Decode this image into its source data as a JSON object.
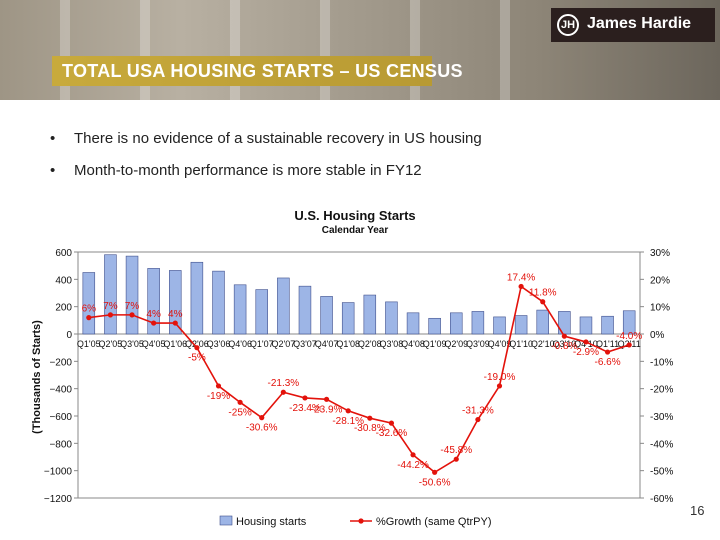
{
  "header": {
    "brand": "James Hardie",
    "logo_glyph": "JH",
    "title": "TOTAL USA HOUSING STARTS – US CENSUS"
  },
  "bullets": [
    "There is no evidence of a sustainable recovery in US housing",
    "Month-to-month performance is more stable in FY12"
  ],
  "page_number": "16",
  "colors": {
    "bar_fill": "#9db5e6",
    "bar_stroke": "#3f4f8c",
    "line": "#e3120b",
    "title_bar": "#c8aa3c",
    "brand_box": "#2b1f1e"
  },
  "chart_data": {
    "type": "bar",
    "title": "U.S. Housing Starts",
    "subtitle": "Calendar Year",
    "ylabel": "(Thousands of Starts)",
    "ylim": [
      -1200,
      600
    ],
    "y_ticks": [
      600,
      400,
      200,
      0,
      -200,
      -400,
      -600,
      -800,
      -1000,
      -1200
    ],
    "y2lim": [
      -60,
      30
    ],
    "y2_ticks": [
      "30%",
      "20%",
      "10%",
      "0%",
      "-10%",
      "-20%",
      "-30%",
      "-40%",
      "-50%",
      "-60%"
    ],
    "categories": [
      "Q1'05",
      "Q2'05",
      "Q3'05",
      "Q4'05",
      "Q1'06",
      "Q2'06",
      "Q3'06",
      "Q4'06",
      "Q1'07",
      "Q2'07",
      "Q3'07",
      "Q4'07",
      "Q1'08",
      "Q2'08",
      "Q3'08",
      "Q4'08",
      "Q1'09",
      "Q2'09",
      "Q3'09",
      "Q4'09",
      "Q1'10",
      "Q2'10",
      "Q3'10",
      "Q4'10",
      "Q1'11",
      "Q2'11"
    ],
    "series": [
      {
        "name": "Housing starts",
        "type": "bar",
        "axis": "left",
        "values": [
          450,
          580,
          570,
          480,
          465,
          525,
          460,
          360,
          325,
          410,
          350,
          275,
          230,
          285,
          235,
          155,
          115,
          155,
          165,
          125,
          135,
          175,
          165,
          125,
          130,
          170
        ]
      },
      {
        "name": "%Growth (same QtrPY)",
        "type": "line",
        "axis": "right",
        "values": [
          6,
          7,
          7,
          4,
          4,
          -5,
          -19,
          -25,
          -30.6,
          -21.3,
          -23.4,
          -23.9,
          -28.1,
          -30.8,
          -32.6,
          -44.2,
          -50.6,
          -45.8,
          -31.3,
          -19.0,
          17.4,
          11.8,
          -0.8,
          -2.9,
          -6.6,
          -4.0
        ],
        "labels": [
          "6%",
          "7%",
          "7%",
          "4%",
          "4%",
          "-5%",
          "-19%",
          "-25%",
          "-30.6%",
          "-21.3%",
          "-23.4%",
          "-23.9%",
          "-28.1%",
          "-30.8%",
          "-32.6%",
          "-44.2%",
          "-50.6%",
          "-45.8%",
          "-31.3%",
          "-19.0%",
          "17.4%",
          "11.8%",
          "-0.8%",
          "-2.9%",
          "-6.6%",
          "-4.0%"
        ]
      }
    ],
    "legend_position": "bottom",
    "grid": false
  }
}
